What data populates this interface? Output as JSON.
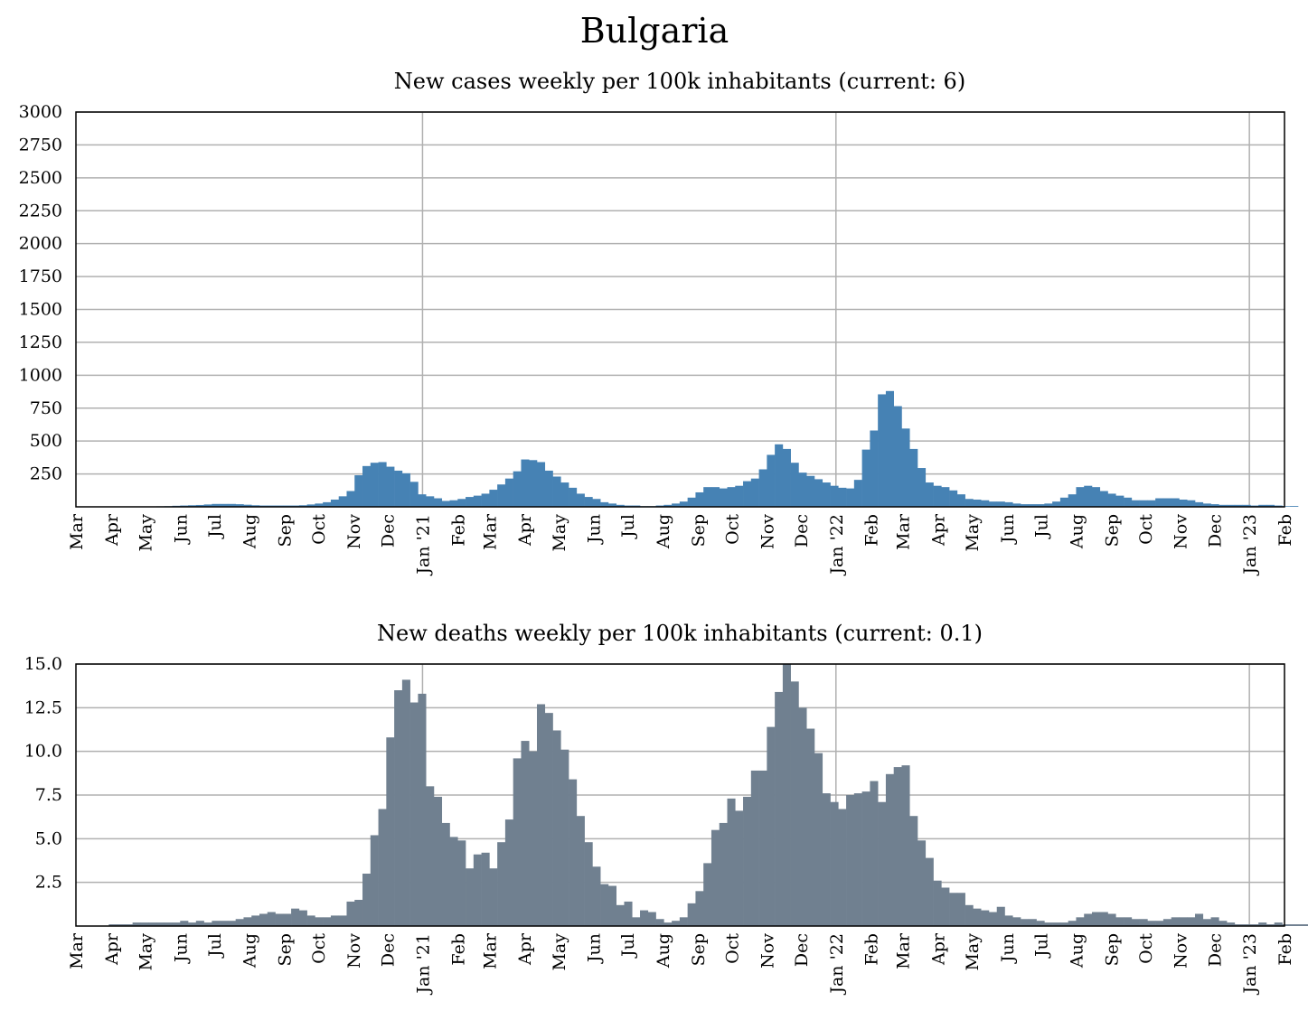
{
  "title": "Bulgaria",
  "chart_data": [
    {
      "type": "bar",
      "title": "New cases weekly per 100k inhabitants (current: 6)",
      "color": "#4682b4",
      "ylim": [
        0,
        3000
      ],
      "yticks": [
        "250",
        "500",
        "750",
        "1000",
        "1250",
        "1500",
        "1750",
        "2000",
        "2250",
        "2500",
        "2750",
        "3000"
      ],
      "ytick_values": [
        250,
        500,
        750,
        1000,
        1250,
        1500,
        1750,
        2000,
        2250,
        2500,
        2750,
        3000
      ],
      "xticks": [
        "Mar",
        "Apr",
        "May",
        "Jun",
        "Jul",
        "Aug",
        "Sep",
        "Oct",
        "Nov",
        "Dec",
        "Jan '21",
        "Feb",
        "Mar",
        "Apr",
        "May",
        "Jun",
        "Jul",
        "Aug",
        "Sep",
        "Oct",
        "Nov",
        "Dec",
        "Jan '22",
        "Feb",
        "Mar",
        "Apr",
        "May",
        "Jun",
        "Jul",
        "Aug",
        "Sep",
        "Oct",
        "Nov",
        "Dec",
        "Jan '23",
        "Feb"
      ],
      "x_start": "2020-03-01",
      "x_end": "2023-02-01",
      "vlines": [
        "2021-01-01",
        "2022-01-01",
        "2023-01-01"
      ],
      "grid": true,
      "week_start": "2020-03-02",
      "values": [
        0,
        0,
        1,
        1,
        2,
        2,
        2,
        2,
        2,
        3,
        4,
        5,
        8,
        10,
        12,
        14,
        18,
        22,
        22,
        22,
        20,
        16,
        12,
        10,
        10,
        10,
        10,
        10,
        12,
        18,
        25,
        35,
        55,
        80,
        120,
        240,
        310,
        335,
        340,
        305,
        275,
        255,
        190,
        95,
        80,
        65,
        45,
        50,
        60,
        75,
        85,
        100,
        130,
        170,
        215,
        270,
        360,
        355,
        340,
        275,
        230,
        185,
        145,
        100,
        75,
        60,
        35,
        25,
        15,
        10,
        10,
        5,
        5,
        10,
        15,
        25,
        40,
        70,
        110,
        150,
        150,
        140,
        150,
        160,
        195,
        215,
        285,
        395,
        475,
        440,
        335,
        260,
        235,
        210,
        185,
        160,
        145,
        140,
        205,
        435,
        580,
        855,
        880,
        765,
        595,
        440,
        295,
        185,
        160,
        150,
        125,
        95,
        60,
        55,
        50,
        40,
        40,
        35,
        25,
        20,
        20,
        20,
        25,
        40,
        70,
        95,
        150,
        160,
        150,
        120,
        100,
        85,
        70,
        50,
        50,
        50,
        65,
        65,
        65,
        55,
        50,
        35,
        25,
        20,
        15,
        15,
        15,
        15,
        10,
        15,
        15,
        10,
        5,
        6
      ]
    },
    {
      "type": "bar",
      "title": "New deaths weekly per 100k inhabitants (current: 0.1)",
      "color": "#708090",
      "ylim": [
        0,
        15.0
      ],
      "yticks": [
        "2.5",
        "5.0",
        "7.5",
        "10.0",
        "12.5",
        "15.0"
      ],
      "ytick_values": [
        2.5,
        5.0,
        7.5,
        10.0,
        12.5,
        15.0
      ],
      "xticks": [
        "Mar",
        "Apr",
        "May",
        "Jun",
        "Jul",
        "Aug",
        "Sep",
        "Oct",
        "Nov",
        "Dec",
        "Jan '21",
        "Feb",
        "Mar",
        "Apr",
        "May",
        "Jun",
        "Jul",
        "Aug",
        "Sep",
        "Oct",
        "Nov",
        "Dec",
        "Jan '22",
        "Feb",
        "Mar",
        "Apr",
        "May",
        "Jun",
        "Jul",
        "Aug",
        "Sep",
        "Oct",
        "Nov",
        "Dec",
        "Jan '23",
        "Feb"
      ],
      "x_start": "2020-03-01",
      "x_end": "2023-02-01",
      "vlines": [
        "2021-01-01",
        "2022-01-01",
        "2023-01-01"
      ],
      "grid": true,
      "week_start": "2020-03-02",
      "values": [
        0,
        0,
        0,
        0,
        0.1,
        0.1,
        0.1,
        0.2,
        0.2,
        0.2,
        0.2,
        0.2,
        0.2,
        0.3,
        0.2,
        0.3,
        0.2,
        0.3,
        0.3,
        0.3,
        0.4,
        0.5,
        0.6,
        0.7,
        0.8,
        0.7,
        0.7,
        1.0,
        0.9,
        0.6,
        0.5,
        0.5,
        0.6,
        0.6,
        1.4,
        1.5,
        3.0,
        5.2,
        6.7,
        10.8,
        13.5,
        14.1,
        12.8,
        13.3,
        8.0,
        7.4,
        5.9,
        5.1,
        4.9,
        3.3,
        4.1,
        4.2,
        3.3,
        4.8,
        6.1,
        9.6,
        10.6,
        10.0,
        12.7,
        12.2,
        11.2,
        10.1,
        8.4,
        6.3,
        4.8,
        3.4,
        2.4,
        2.3,
        1.2,
        1.4,
        0.5,
        0.9,
        0.8,
        0.4,
        0.2,
        0.3,
        0.5,
        1.3,
        2.0,
        3.6,
        5.5,
        5.9,
        7.3,
        6.6,
        7.4,
        8.9,
        8.9,
        11.4,
        13.4,
        15.1,
        14.0,
        12.5,
        11.3,
        9.9,
        7.6,
        7.1,
        6.7,
        7.5,
        7.6,
        7.7,
        8.3,
        7.1,
        8.7,
        9.1,
        9.2,
        6.3,
        4.9,
        3.9,
        2.6,
        2.2,
        1.9,
        1.9,
        1.2,
        1.0,
        0.9,
        0.8,
        1.1,
        0.6,
        0.5,
        0.4,
        0.4,
        0.3,
        0.2,
        0.2,
        0.2,
        0.3,
        0.5,
        0.7,
        0.8,
        0.8,
        0.7,
        0.5,
        0.5,
        0.4,
        0.4,
        0.3,
        0.3,
        0.4,
        0.5,
        0.5,
        0.5,
        0.7,
        0.4,
        0.5,
        0.3,
        0.2,
        0.1,
        0.1,
        0.1,
        0.2,
        0.1,
        0.2,
        0.1,
        0.1,
        0.1,
        0.1
      ]
    }
  ]
}
